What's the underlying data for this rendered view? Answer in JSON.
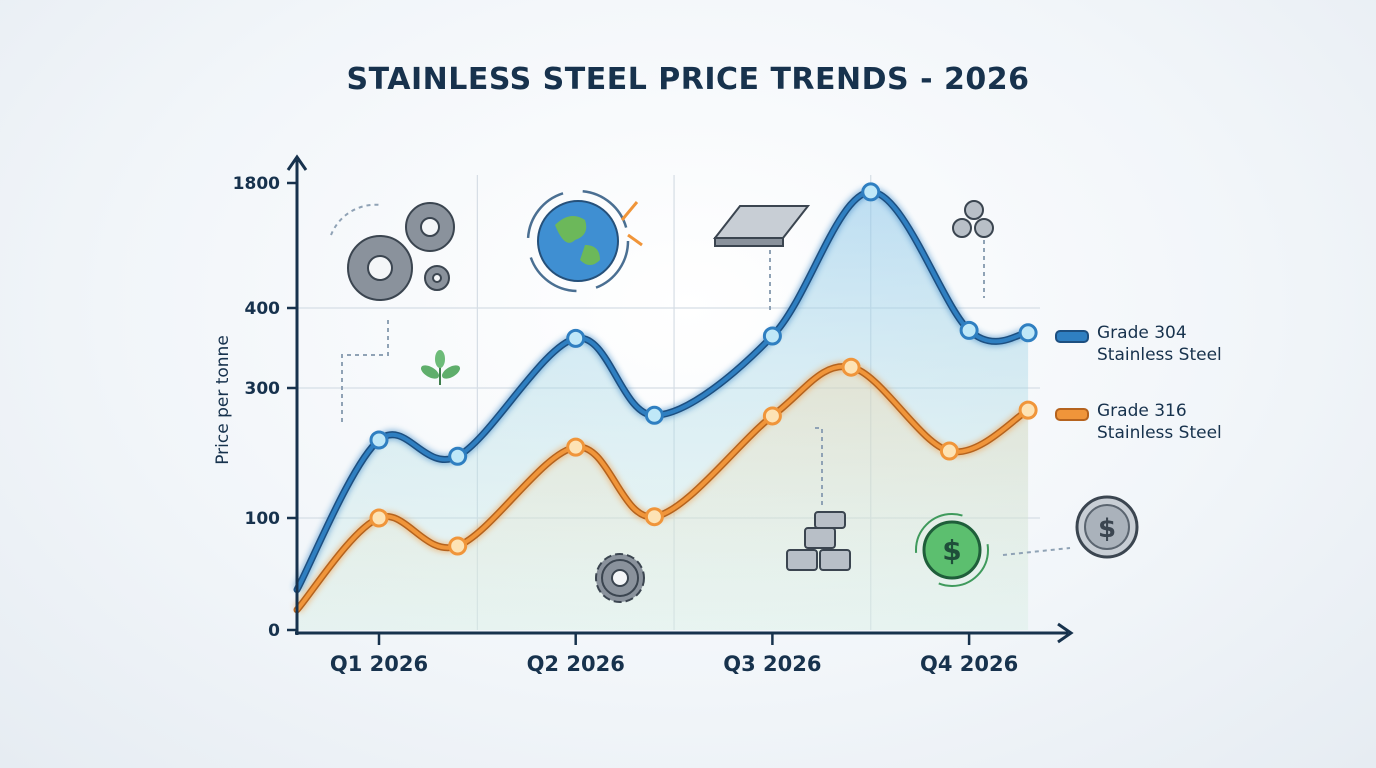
{
  "title": "STAINLESS STEEL PRICE TRENDS - 2026",
  "chart_data": {
    "type": "line",
    "title": "STAINLESS STEEL PRICE TRENDS - 2026",
    "xlabel": "",
    "ylabel": "Price per tonne",
    "y_ticks": [
      0,
      100,
      300,
      400,
      1800
    ],
    "y_tick_labels": [
      "0",
      "100",
      "300",
      "400",
      "1800"
    ],
    "y_scale": "non-uniform (labels unevenly spaced)",
    "x_ticks": [
      1,
      2,
      3,
      4
    ],
    "x_tick_labels": [
      "Q1 2026",
      "Q2 2026",
      "Q3 2026",
      "Q4 2026"
    ],
    "grid": true,
    "legend_placement": "right",
    "series": [
      {
        "name": "Grade 304 Stainless Steel",
        "color": "#2f7fc1",
        "x": [
          0.6,
          1,
          1.4,
          2,
          2.4,
          3,
          3.5,
          4,
          4.3
        ],
        "y": [
          36,
          220,
          195,
          362,
          258,
          365,
          1700,
          372,
          369
        ]
      },
      {
        "name": "Grade 316 Stainless Steel",
        "color": "#f0953a",
        "x": [
          0.6,
          1,
          1.4,
          2,
          2.4,
          3,
          3.4,
          3.9,
          4.3
        ],
        "y": [
          18,
          100,
          75,
          209,
          102,
          257,
          326,
          203,
          266
        ]
      }
    ]
  },
  "legend": [
    {
      "line1": "Grade 304",
      "line2": "Stainless Steel",
      "color": "#2f7fc1"
    },
    {
      "line1": "Grade 316",
      "line2": "Stainless Steel",
      "color": "#f0953a"
    }
  ],
  "icons": [
    "gears-icon",
    "sprout-icon",
    "globe-icon",
    "steel-sheet-icon",
    "steel-pipes-icon",
    "gear-icon",
    "steel-ingots-icon",
    "dollar-coin-icon",
    "silver-dollar-coin-icon"
  ]
}
